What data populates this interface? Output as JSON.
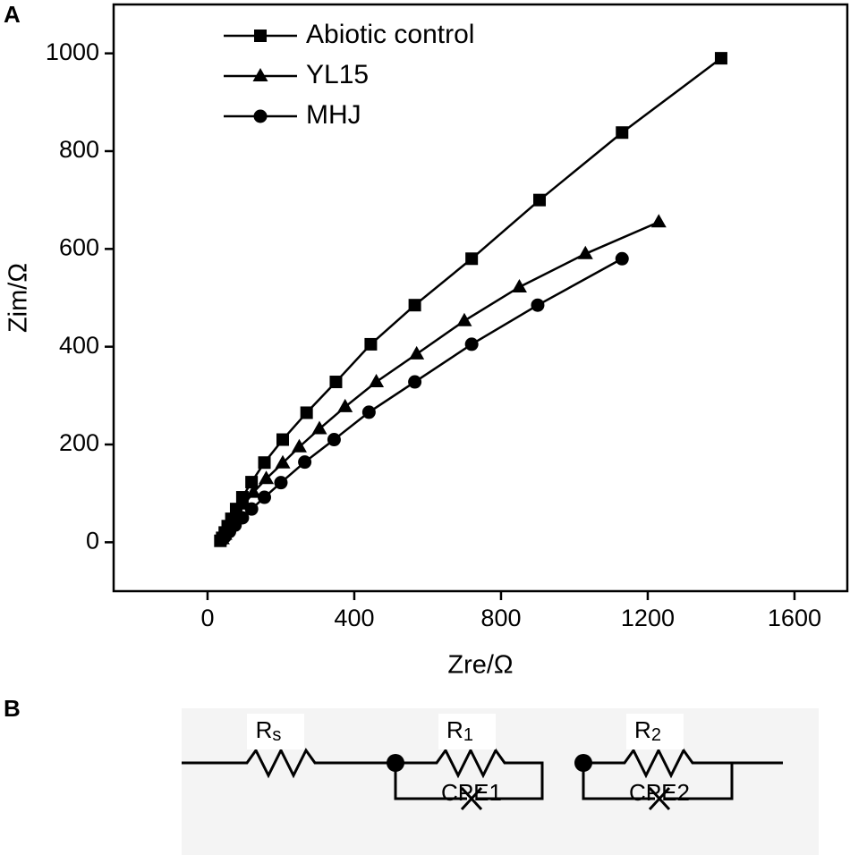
{
  "chart_data": {
    "type": "line",
    "panel": "A",
    "x_label": "Zre/Ω",
    "y_label": "Zim/Ω",
    "xlim": [
      -256,
      1744
    ],
    "ylim": [
      -100,
      1100
    ],
    "xticks": [
      0,
      400,
      800,
      1200,
      1600
    ],
    "yticks": [
      0,
      200,
      400,
      600,
      800,
      1000
    ],
    "legend": "top-left",
    "series": [
      {
        "name": "Abiotic control",
        "color": "#000000",
        "marker": "square",
        "x": [
          1400,
          1130,
          905,
          720,
          565,
          445,
          350,
          270,
          205,
          155,
          120,
          95,
          78,
          65,
          55,
          47,
          40,
          35
        ],
        "values": [
          990,
          838,
          700,
          580,
          485,
          405,
          328,
          265,
          210,
          163,
          123,
          92,
          68,
          48,
          33,
          20,
          9,
          3
        ]
      },
      {
        "name": "YL15",
        "color": "#000000",
        "marker": "triangle",
        "x": [
          1230,
          1030,
          850,
          700,
          570,
          460,
          375,
          305,
          250,
          205,
          160,
          125,
          100,
          80,
          65,
          55,
          47,
          40
        ],
        "values": [
          655,
          590,
          522,
          453,
          385,
          328,
          277,
          232,
          195,
          162,
          130,
          102,
          78,
          58,
          42,
          28,
          16,
          7
        ]
      },
      {
        "name": "MHJ",
        "color": "#000000",
        "marker": "circle",
        "x": [
          1130,
          900,
          720,
          565,
          440,
          345,
          265,
          200,
          155,
          120,
          95,
          75,
          60,
          48,
          40
        ],
        "values": [
          580,
          485,
          405,
          328,
          266,
          210,
          164,
          122,
          92,
          68,
          50,
          35,
          22,
          12,
          5
        ]
      }
    ]
  },
  "diagram": {
    "panel": "B",
    "elements": [
      {
        "main": "R",
        "sub": "s"
      },
      {
        "main": "R",
        "sub": "1",
        "cpe": "CPE1"
      },
      {
        "main": "R",
        "sub": "2",
        "cpe": "CPE2"
      }
    ]
  }
}
